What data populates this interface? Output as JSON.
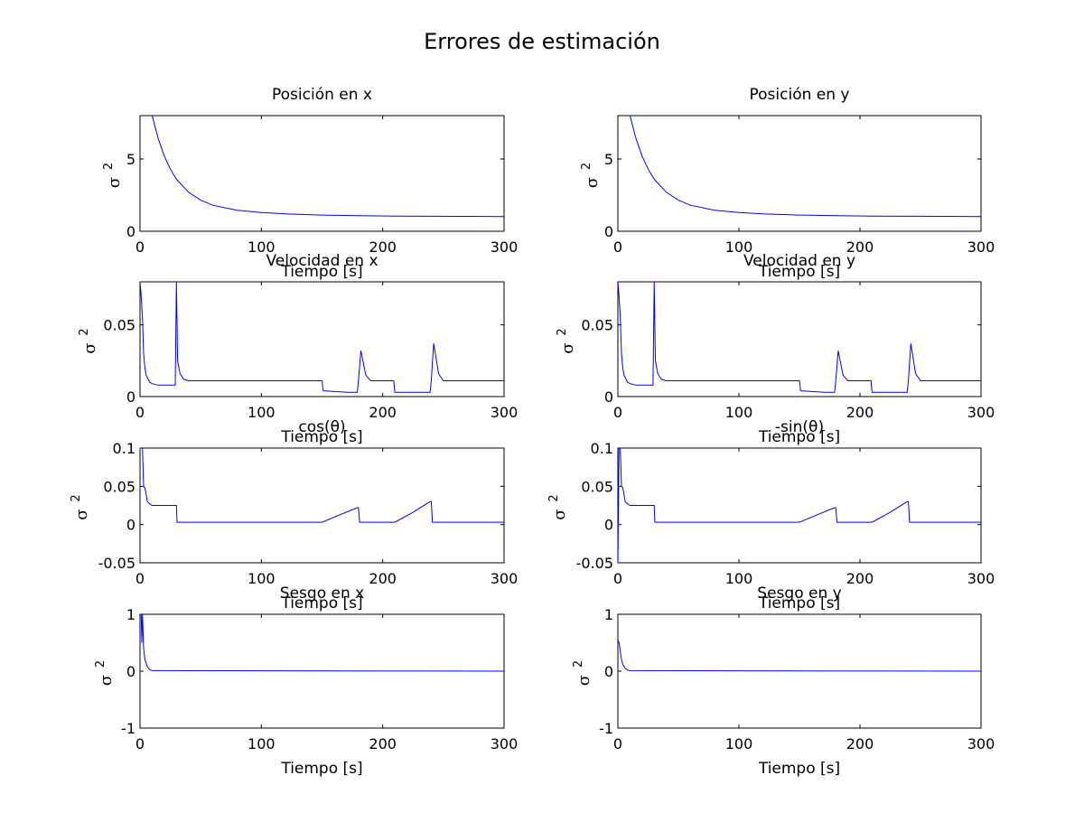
{
  "figure_title": "Errores de estimación",
  "series_color": "#0000ff",
  "chart_data": [
    {
      "type": "line",
      "title": "Posición en x",
      "xlabel": "Tiempo [s]",
      "ylabel_symbol": "σ",
      "ylabel_exponent": "2",
      "xlim": [
        0,
        300
      ],
      "ylim": [
        0,
        8
      ],
      "xticks": [
        0,
        100,
        200,
        300
      ],
      "yticks": [
        0,
        5
      ],
      "x": [
        10,
        15,
        20,
        25,
        30,
        40,
        50,
        60,
        80,
        100,
        120,
        150,
        180,
        210,
        240,
        270,
        300
      ],
      "y": [
        8.0,
        6.4,
        5.2,
        4.3,
        3.6,
        2.7,
        2.15,
        1.8,
        1.45,
        1.3,
        1.2,
        1.12,
        1.08,
        1.05,
        1.04,
        1.03,
        1.02
      ]
    },
    {
      "type": "line",
      "title": "Posición en y",
      "xlabel": "Tiempo [s]",
      "ylabel_symbol": "σ",
      "ylabel_exponent": "2",
      "xlim": [
        0,
        300
      ],
      "ylim": [
        0,
        8
      ],
      "xticks": [
        0,
        100,
        200,
        300
      ],
      "yticks": [
        0,
        5
      ],
      "x": [
        10,
        15,
        20,
        25,
        30,
        40,
        50,
        60,
        80,
        100,
        120,
        150,
        180,
        210,
        240,
        270,
        300
      ],
      "y": [
        8.0,
        6.4,
        5.2,
        4.3,
        3.6,
        2.7,
        2.15,
        1.8,
        1.45,
        1.3,
        1.2,
        1.12,
        1.08,
        1.05,
        1.04,
        1.03,
        1.02
      ]
    },
    {
      "type": "line",
      "title": "Velocidad en x",
      "xlabel": "Tiempo [s]",
      "ylabel_symbol": "σ",
      "ylabel_exponent": "2",
      "xlim": [
        0,
        300
      ],
      "ylim": [
        0,
        0.08
      ],
      "xticks": [
        0,
        100,
        200,
        300
      ],
      "yticks": [
        0,
        0.05
      ],
      "x": [
        0,
        1,
        2,
        3,
        4,
        5,
        8,
        10,
        15,
        20,
        25,
        29,
        30,
        31,
        33,
        36,
        40,
        60,
        80,
        100,
        120,
        140,
        150,
        151,
        170,
        179,
        180,
        182,
        186,
        190,
        209,
        210,
        238,
        239,
        240,
        242,
        246,
        250,
        270,
        300
      ],
      "y": [
        0.08,
        0.07,
        0.055,
        0.03,
        0.02,
        0.015,
        0.01,
        0.009,
        0.008,
        0.008,
        0.008,
        0.008,
        0.08,
        0.025,
        0.016,
        0.012,
        0.011,
        0.011,
        0.011,
        0.011,
        0.011,
        0.011,
        0.011,
        0.004,
        0.003,
        0.003,
        0.011,
        0.032,
        0.015,
        0.011,
        0.011,
        0.003,
        0.003,
        0.003,
        0.011,
        0.037,
        0.016,
        0.011,
        0.011,
        0.011
      ]
    },
    {
      "type": "line",
      "title": "Velocidad en y",
      "xlabel": "Tiempo [s]",
      "ylabel_symbol": "σ",
      "ylabel_exponent": "2",
      "xlim": [
        0,
        300
      ],
      "ylim": [
        0,
        0.08
      ],
      "xticks": [
        0,
        100,
        200,
        300
      ],
      "yticks": [
        0,
        0.05
      ],
      "x": [
        0,
        1,
        2,
        3,
        4,
        5,
        8,
        10,
        15,
        20,
        25,
        29,
        30,
        31,
        33,
        36,
        40,
        60,
        80,
        100,
        120,
        140,
        150,
        151,
        170,
        179,
        180,
        182,
        186,
        190,
        209,
        210,
        238,
        239,
        240,
        242,
        246,
        250,
        270,
        300
      ],
      "y": [
        0.08,
        0.07,
        0.055,
        0.03,
        0.02,
        0.015,
        0.01,
        0.009,
        0.008,
        0.008,
        0.008,
        0.008,
        0.08,
        0.025,
        0.016,
        0.012,
        0.011,
        0.011,
        0.011,
        0.011,
        0.011,
        0.011,
        0.011,
        0.004,
        0.003,
        0.003,
        0.011,
        0.032,
        0.015,
        0.011,
        0.011,
        0.003,
        0.003,
        0.003,
        0.011,
        0.037,
        0.016,
        0.011,
        0.011,
        0.011
      ]
    },
    {
      "type": "line",
      "title": "cos(θ)",
      "xlabel": "Tiempo [s]",
      "ylabel_symbol": "σ",
      "ylabel_exponent": "2",
      "xlim": [
        0,
        300
      ],
      "ylim": [
        -0.05,
        0.1
      ],
      "xticks": [
        0,
        100,
        200,
        300
      ],
      "yticks": [
        -0.05,
        0,
        0.05,
        0.1
      ],
      "x": [
        0,
        2,
        3,
        4,
        5,
        6,
        8,
        10,
        15,
        20,
        25,
        30,
        30.5,
        40,
        60,
        80,
        100,
        120,
        150,
        165,
        179,
        180,
        181,
        209,
        210,
        225,
        239,
        240,
        241,
        260,
        300
      ],
      "y": [
        0.1,
        0.1,
        0.05,
        0.048,
        0.04,
        0.03,
        0.027,
        0.025,
        0.025,
        0.025,
        0.025,
        0.025,
        0.003,
        0.003,
        0.003,
        0.003,
        0.003,
        0.003,
        0.003,
        0.013,
        0.022,
        0.022,
        0.003,
        0.003,
        0.003,
        0.016,
        0.03,
        0.03,
        0.003,
        0.003,
        0.003
      ]
    },
    {
      "type": "line",
      "title": "-sin(θ)",
      "xlabel": "Tiempo [s]",
      "ylabel_symbol": "σ",
      "ylabel_exponent": "2",
      "xlim": [
        0,
        300
      ],
      "ylim": [
        -0.05,
        0.1
      ],
      "xticks": [
        0,
        100,
        200,
        300
      ],
      "yticks": [
        -0.05,
        0,
        0.05,
        0.1
      ],
      "x": [
        0,
        1,
        2,
        3,
        4,
        5,
        6,
        8,
        10,
        15,
        20,
        25,
        30,
        30.5,
        40,
        60,
        80,
        100,
        120,
        150,
        165,
        179,
        180,
        181,
        209,
        210,
        225,
        239,
        240,
        241,
        260,
        300
      ],
      "y": [
        -0.05,
        0.1,
        0.1,
        0.05,
        0.048,
        0.04,
        0.03,
        0.027,
        0.025,
        0.025,
        0.025,
        0.025,
        0.025,
        0.003,
        0.003,
        0.003,
        0.003,
        0.003,
        0.003,
        0.003,
        0.013,
        0.022,
        0.022,
        0.003,
        0.003,
        0.003,
        0.016,
        0.03,
        0.03,
        0.003,
        0.003,
        0.003
      ]
    },
    {
      "type": "line",
      "title": "Sesgo en x",
      "xlabel": "Tiempo [s]",
      "ylabel_symbol": "σ",
      "ylabel_exponent": "2",
      "xlim": [
        0,
        300
      ],
      "ylim": [
        -1,
        1
      ],
      "xticks": [
        0,
        100,
        200,
        300
      ],
      "yticks": [
        -1,
        0,
        1
      ],
      "x": [
        0,
        1,
        1.5,
        2,
        3,
        4,
        6,
        8,
        10,
        300
      ],
      "y": [
        1,
        1,
        0.5,
        1,
        0.4,
        0.2,
        0.08,
        0.03,
        0.01,
        0.0
      ]
    },
    {
      "type": "line",
      "title": "Sesgo en y",
      "xlabel": "Tiempo [s]",
      "ylabel_symbol": "σ",
      "ylabel_exponent": "2",
      "xlim": [
        0,
        300
      ],
      "ylim": [
        -1,
        1
      ],
      "xticks": [
        0,
        100,
        200,
        300
      ],
      "yticks": [
        -1,
        0,
        1
      ],
      "x": [
        0,
        1,
        2,
        3,
        4,
        6,
        8,
        10,
        300
      ],
      "y": [
        0.55,
        0.5,
        0.35,
        0.2,
        0.12,
        0.05,
        0.02,
        0.01,
        0.0
      ]
    }
  ]
}
